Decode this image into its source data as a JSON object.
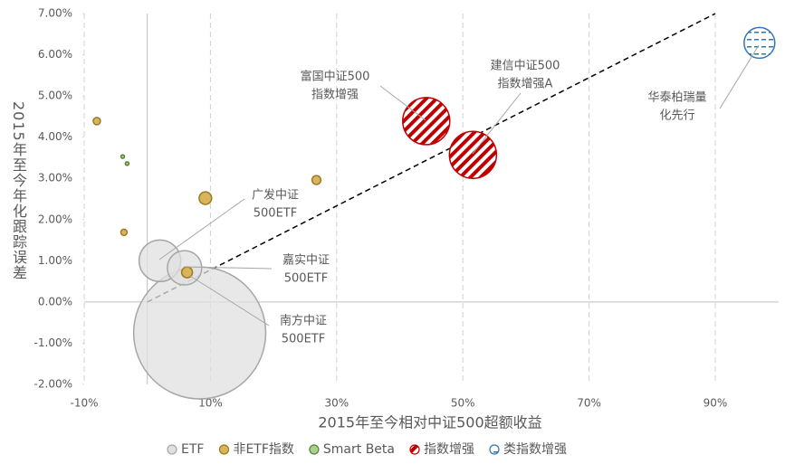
{
  "chart_data": {
    "type": "bubble",
    "xlabel": "2015年至今相对中证500超额收益",
    "ylabel": "2015年至今年化跟踪误差",
    "xlim": [
      -10,
      100
    ],
    "ylim": [
      -2,
      7
    ],
    "xticks": [
      {
        "value": -10,
        "label": "-10%"
      },
      {
        "value": 10,
        "label": "10%"
      },
      {
        "value": 30,
        "label": "30%"
      },
      {
        "value": 50,
        "label": "50%"
      },
      {
        "value": 70,
        "label": "70%"
      },
      {
        "value": 90,
        "label": "90%"
      }
    ],
    "yticks": [
      {
        "value": 7,
        "label": "7.00%"
      },
      {
        "value": 6,
        "label": "6.00%"
      },
      {
        "value": 5,
        "label": "5.00%"
      },
      {
        "value": 4,
        "label": "4.00%"
      },
      {
        "value": 3,
        "label": "3.00%"
      },
      {
        "value": 2,
        "label": "2.00%"
      },
      {
        "value": 1,
        "label": "1.00%"
      },
      {
        "value": 0,
        "label": "0.00%"
      },
      {
        "value": -1,
        "label": "-1.00%"
      },
      {
        "value": -2,
        "label": "-2.00%"
      }
    ],
    "grid": true,
    "legend": "bottom",
    "series": [
      {
        "name": "ETF",
        "color": "#e0e0e0",
        "stroke": "#a6a6a6",
        "pattern": "solid",
        "x": [
          8.3,
          2.0,
          5.9
        ],
        "values": [
          -0.75,
          1.0,
          0.83
        ],
        "sizes": [
          1330,
          132,
          90
        ]
      },
      {
        "name": "非ETF指数",
        "color": "#d9b45a",
        "stroke": "#9c7a22",
        "pattern": "solid",
        "x": [
          -8.0,
          9.2,
          26.8,
          -3.7,
          6.3
        ],
        "values": [
          4.39,
          2.52,
          2.96,
          1.69,
          0.72
        ],
        "sizes": [
          4,
          12,
          6,
          3,
          9
        ]
      },
      {
        "name": "Smart Beta",
        "color": "#a9d18e",
        "stroke": "#548235",
        "pattern": "solid",
        "x": [
          -3.9,
          -3.2
        ],
        "values": [
          3.53,
          3.36
        ],
        "sizes": [
          1,
          1
        ]
      },
      {
        "name": "指数增强",
        "color": "#c00000",
        "stroke": "#c00000",
        "pattern": "diagonal-stripes",
        "x": [
          44.2,
          51.6
        ],
        "values": [
          4.39,
          3.57
        ],
        "sizes": [
          169,
          169
        ]
      },
      {
        "name": "类指数增强",
        "color": "#2e75b6",
        "stroke": "#2e75b6",
        "pattern": "horizontal-dashes",
        "x": [
          97.0
        ],
        "values": [
          6.29
        ],
        "sizes": [
          72
        ]
      }
    ],
    "reference_line": {
      "x": [
        0,
        90
      ],
      "y": [
        0,
        7
      ]
    },
    "annotations": [
      {
        "lines": [
          "富国中证500",
          "指数增强"
        ]
      },
      {
        "lines": [
          "建信中证500",
          "指数增强A"
        ]
      },
      {
        "lines": [
          "华泰柏瑞量",
          "化先行"
        ]
      },
      {
        "lines": [
          "广发中证",
          "500ETF"
        ]
      },
      {
        "lines": [
          "嘉实中证",
          "500ETF"
        ]
      },
      {
        "lines": [
          "南方中证",
          "500ETF"
        ]
      }
    ]
  }
}
